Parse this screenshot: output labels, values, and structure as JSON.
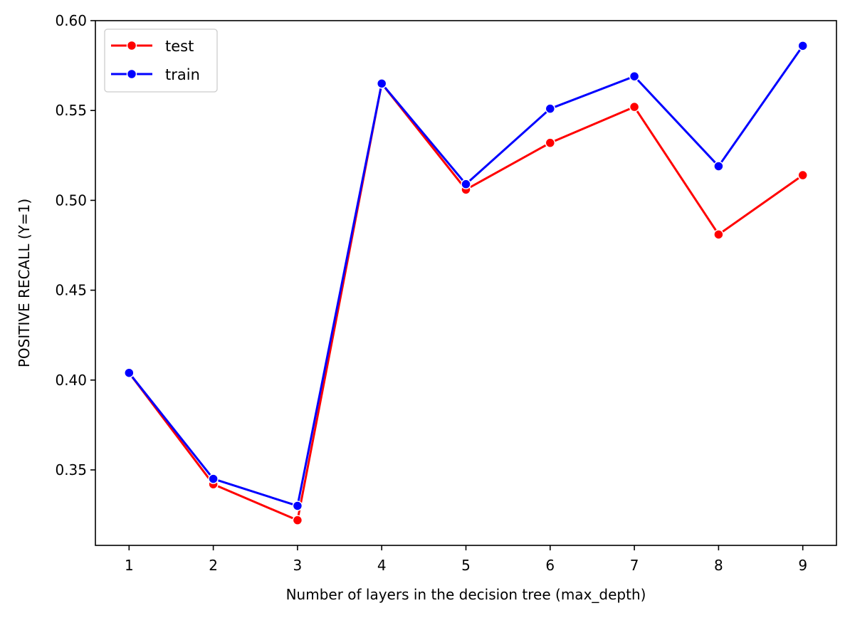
{
  "chart_data": {
    "type": "line",
    "xlabel": "Number of layers in the decision tree (max_depth)",
    "ylabel": "POSITIVE RECALL (Y=1)",
    "x": [
      1,
      2,
      3,
      4,
      5,
      6,
      7,
      8,
      9
    ],
    "x_ticks": [
      "1",
      "2",
      "3",
      "4",
      "5",
      "6",
      "7",
      "8",
      "9"
    ],
    "xlim": [
      0.6,
      9.4
    ],
    "ylim": [
      0.308,
      0.6
    ],
    "y_ticks": [
      "0.35",
      "0.40",
      "0.45",
      "0.50",
      "0.55",
      "0.60"
    ],
    "grid": false,
    "legend_position": "top-left",
    "series": [
      {
        "name": "test",
        "color": "#ff0000",
        "marker": "circle",
        "values": [
          0.404,
          0.342,
          0.322,
          0.565,
          0.506,
          0.532,
          0.552,
          0.481,
          0.514
        ]
      },
      {
        "name": "train",
        "color": "#0000ff",
        "marker": "circle",
        "values": [
          0.404,
          0.345,
          0.33,
          0.565,
          0.509,
          0.551,
          0.569,
          0.519,
          0.586
        ]
      }
    ]
  }
}
